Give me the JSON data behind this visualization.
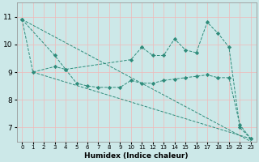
{
  "bg_color": "#cce8e8",
  "grid_color": "#f0b8b8",
  "line_color": "#2e8b7a",
  "xlabel": "Humidex (Indice chaleur)",
  "ylim": [
    6.5,
    11.5
  ],
  "yticks": [
    7,
    8,
    9,
    10,
    11
  ],
  "xlim": [
    -0.5,
    21.5
  ],
  "xtick_positions": [
    0,
    1,
    2,
    3,
    4,
    5,
    6,
    7,
    8,
    9,
    10,
    11,
    12,
    13,
    14,
    15,
    16,
    17,
    18,
    19,
    20,
    21
  ],
  "xtick_labels": [
    "0",
    "1",
    "2",
    "3",
    "4",
    "5",
    "6",
    "7",
    "8",
    "9",
    "10",
    "11",
    "12",
    "13",
    "14",
    "15",
    "16",
    "17",
    "18",
    "19",
    "22",
    "23"
  ],
  "series": [
    {
      "xi": [
        0,
        3,
        4,
        10,
        11,
        12,
        13,
        14,
        15,
        16,
        17,
        18,
        19,
        20,
        21
      ],
      "y": [
        10.9,
        9.6,
        9.1,
        9.45,
        9.9,
        9.6,
        9.6,
        10.2,
        9.8,
        9.7,
        10.8,
        10.4,
        9.9,
        7.0,
        6.6
      ],
      "has_marker": true
    },
    {
      "xi": [
        0,
        1,
        3,
        4,
        5,
        6,
        7,
        8,
        9,
        10,
        11,
        12,
        13,
        14,
        15,
        16,
        17,
        18,
        19,
        20,
        21
      ],
      "y": [
        10.9,
        9.0,
        9.2,
        9.1,
        8.6,
        8.5,
        8.45,
        8.45,
        8.45,
        8.7,
        8.6,
        8.6,
        8.7,
        8.75,
        8.8,
        8.85,
        8.9,
        8.8,
        8.8,
        7.1,
        6.6
      ],
      "has_marker": true
    },
    {
      "xi": [
        0,
        21
      ],
      "y": [
        10.9,
        6.5
      ],
      "has_marker": false
    },
    {
      "xi": [
        1,
        21
      ],
      "y": [
        9.0,
        6.6
      ],
      "has_marker": false
    }
  ]
}
